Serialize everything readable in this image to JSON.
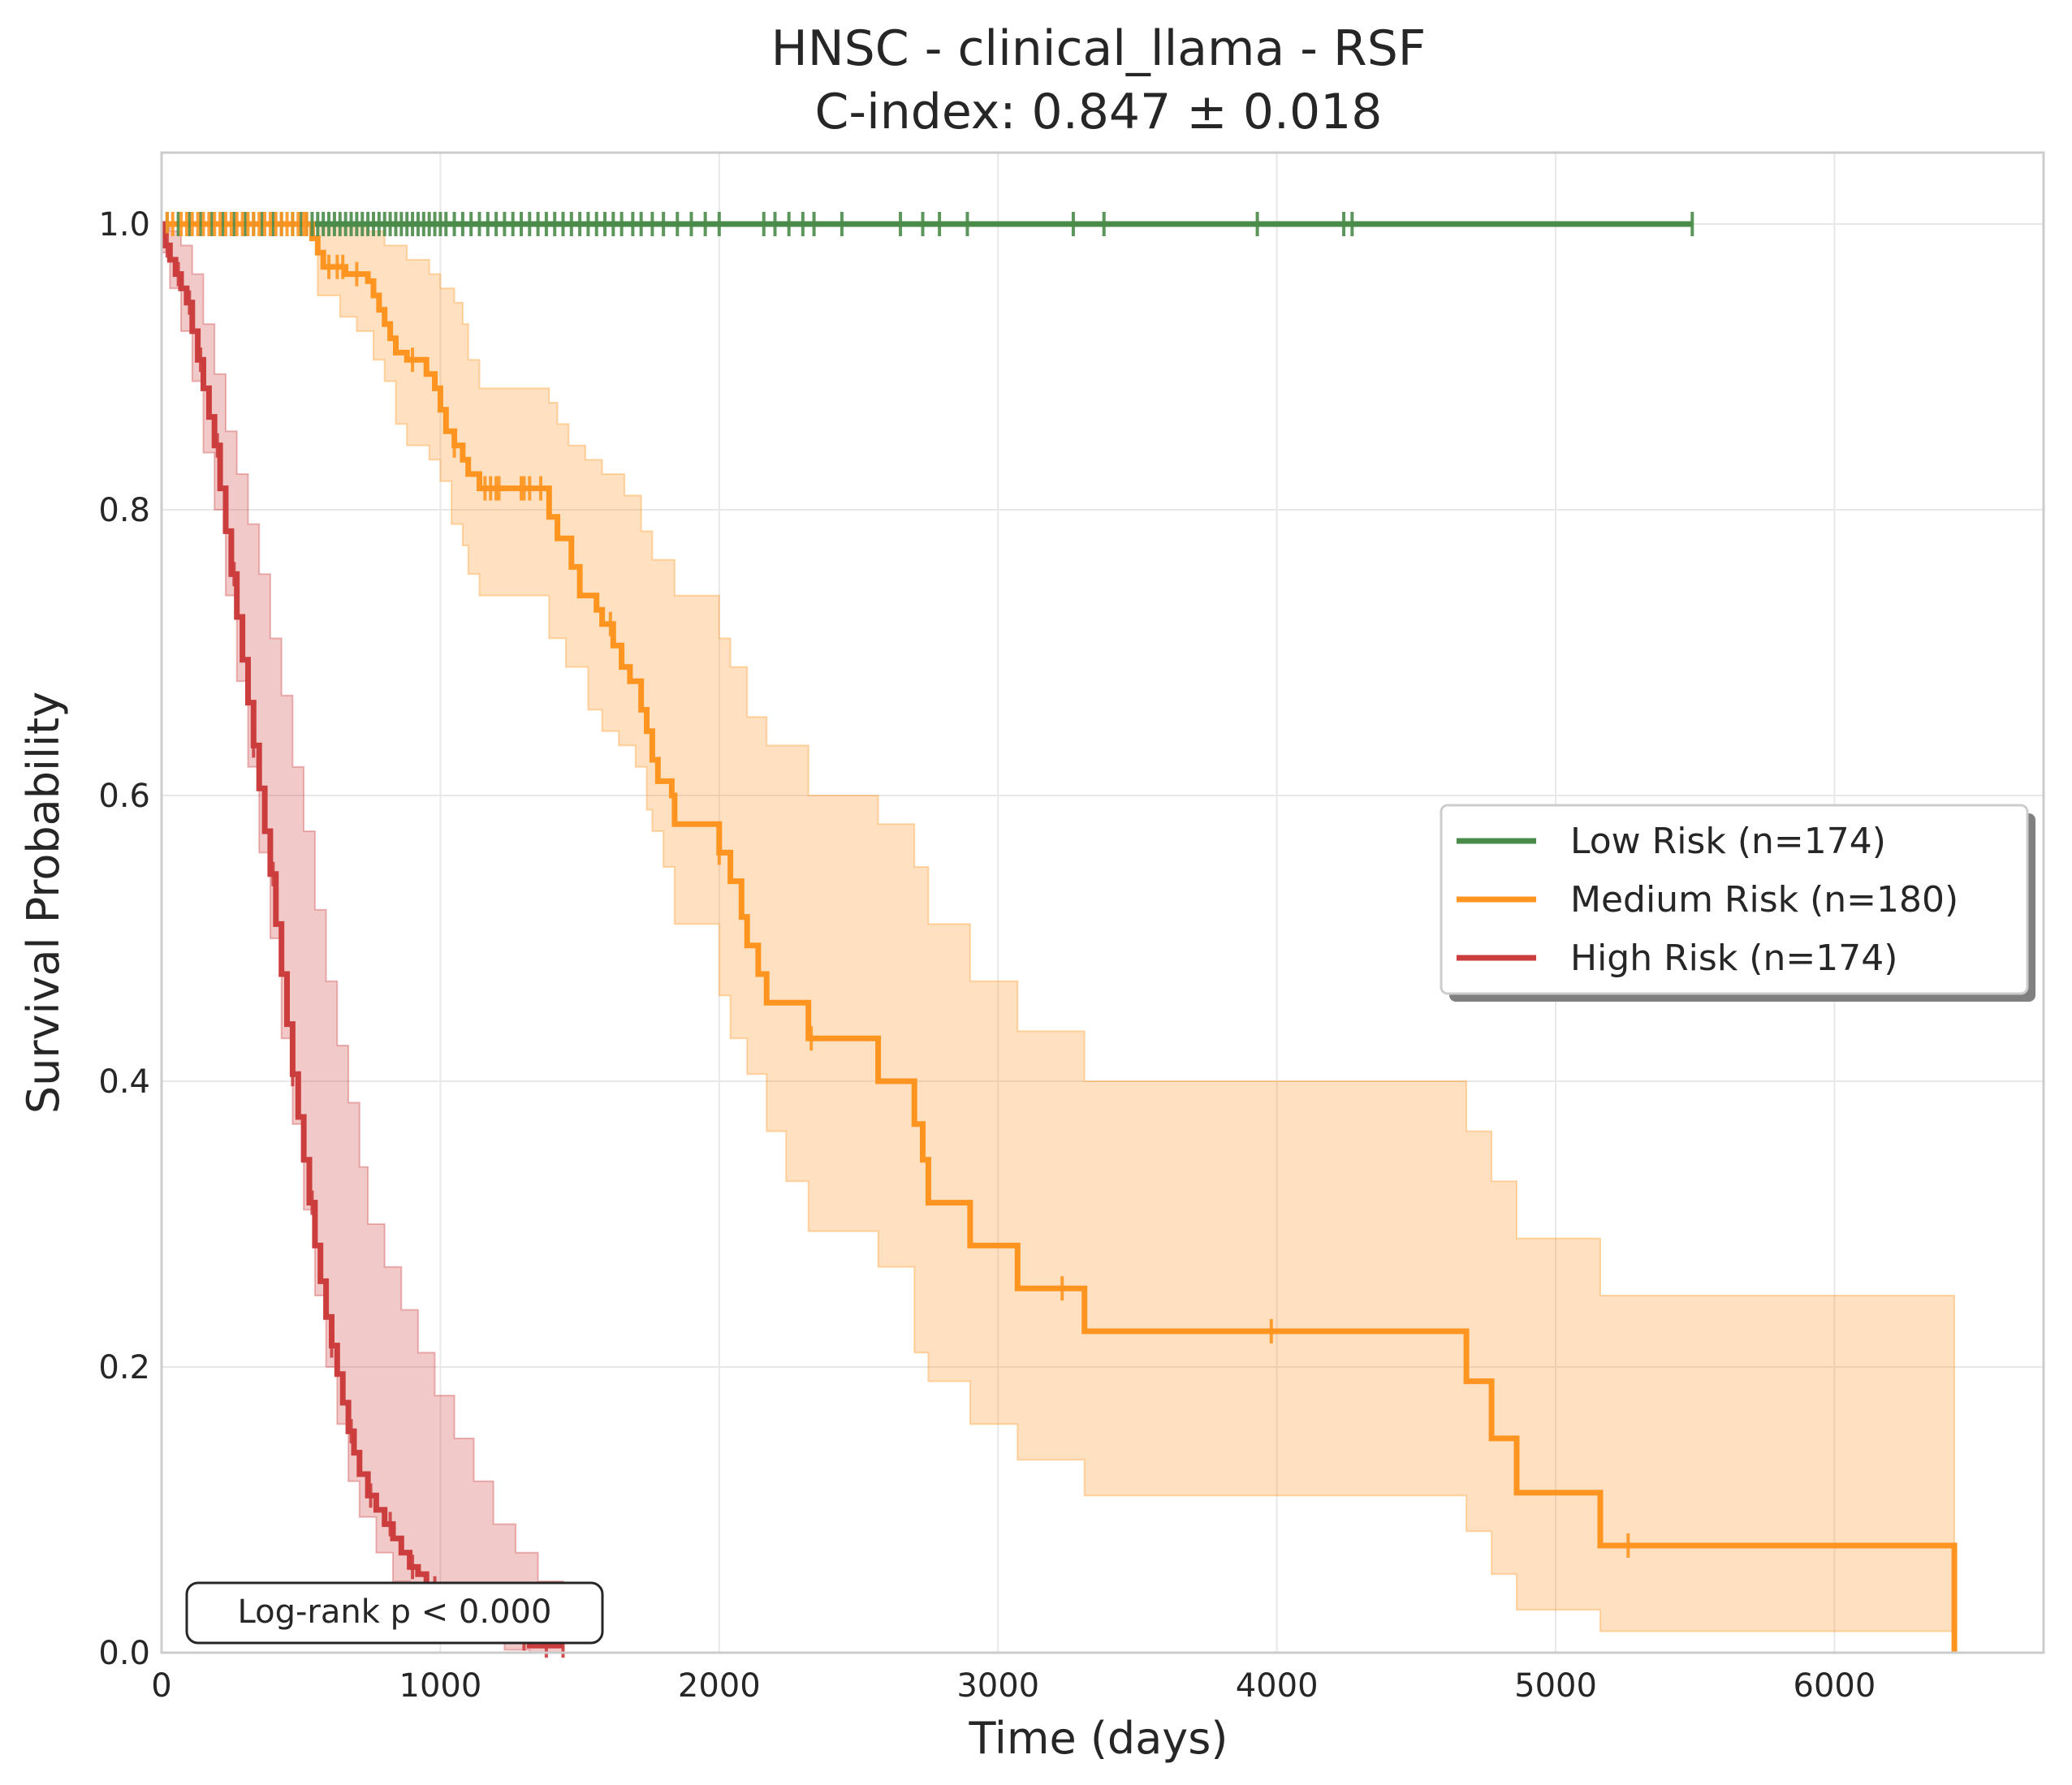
{
  "chart_data": {
    "type": "line",
    "subtype": "kaplan-meier",
    "title": "HNSC - clinical_llama - RSF",
    "subtitle": "C-index: 0.847 ± 0.018",
    "xlabel": "Time (days)",
    "ylabel": "Survival Probability",
    "xlim": [
      0,
      6750
    ],
    "ylim": [
      0,
      1.05
    ],
    "xticks": [
      0,
      1000,
      2000,
      3000,
      4000,
      5000,
      6000
    ],
    "xtick_labels": [
      "0",
      "1000",
      "2000",
      "3000",
      "4000",
      "5000",
      "6000"
    ],
    "yticks": [
      0.0,
      0.2,
      0.4,
      0.6,
      0.8,
      1.0
    ],
    "ytick_labels": [
      "0.0",
      "0.2",
      "0.4",
      "0.6",
      "0.8",
      "1.0"
    ],
    "grid": true,
    "legend_position": "center-right",
    "annotation": "Log-rank p < 0.000",
    "series": [
      {
        "name": "Low Risk (n=174)",
        "color": "#4a8b4a",
        "steps": [
          [
            0,
            1.0
          ],
          [
            5490,
            1.0
          ]
        ],
        "censor_times": [
          20,
          60,
          100,
          140,
          180,
          220,
          260,
          300,
          330,
          360,
          400,
          430,
          470,
          500,
          520,
          540,
          560,
          580,
          600,
          620,
          640,
          660,
          680,
          700,
          720,
          740,
          760,
          780,
          800,
          820,
          840,
          860,
          880,
          900,
          920,
          940,
          960,
          980,
          1000,
          1020,
          1050,
          1080,
          1110,
          1140,
          1170,
          1200,
          1230,
          1260,
          1290,
          1320,
          1350,
          1380,
          1410,
          1440,
          1470,
          1500,
          1530,
          1560,
          1590,
          1620,
          1650,
          1690,
          1720,
          1760,
          1800,
          1850,
          1900,
          1950,
          2000,
          2160,
          2200,
          2250,
          2300,
          2340,
          2440,
          2650,
          2730,
          2790,
          2890,
          3270,
          3380,
          3930,
          4240,
          4270,
          5490
        ],
        "ci_lower": [],
        "ci_upper": []
      },
      {
        "name": "Medium Risk (n=180)",
        "color": "#ff9520",
        "steps": [
          [
            0,
            1.0
          ],
          [
            530,
            1.0
          ],
          [
            540,
            0.99
          ],
          [
            560,
            0.98
          ],
          [
            580,
            0.97
          ],
          [
            660,
            0.965
          ],
          [
            740,
            0.96
          ],
          [
            760,
            0.95
          ],
          [
            780,
            0.94
          ],
          [
            800,
            0.93
          ],
          [
            820,
            0.92
          ],
          [
            840,
            0.91
          ],
          [
            880,
            0.905
          ],
          [
            950,
            0.895
          ],
          [
            980,
            0.885
          ],
          [
            1000,
            0.87
          ],
          [
            1020,
            0.855
          ],
          [
            1050,
            0.845
          ],
          [
            1080,
            0.835
          ],
          [
            1100,
            0.825
          ],
          [
            1140,
            0.815
          ],
          [
            1390,
            0.795
          ],
          [
            1420,
            0.78
          ],
          [
            1470,
            0.76
          ],
          [
            1500,
            0.74
          ],
          [
            1560,
            0.73
          ],
          [
            1580,
            0.72
          ],
          [
            1620,
            0.705
          ],
          [
            1650,
            0.69
          ],
          [
            1680,
            0.68
          ],
          [
            1720,
            0.66
          ],
          [
            1740,
            0.645
          ],
          [
            1760,
            0.625
          ],
          [
            1780,
            0.61
          ],
          [
            1830,
            0.6
          ],
          [
            1840,
            0.58
          ],
          [
            2000,
            0.56
          ],
          [
            2040,
            0.54
          ],
          [
            2080,
            0.515
          ],
          [
            2100,
            0.495
          ],
          [
            2140,
            0.475
          ],
          [
            2170,
            0.455
          ],
          [
            2320,
            0.43
          ],
          [
            2570,
            0.4
          ],
          [
            2700,
            0.37
          ],
          [
            2730,
            0.345
          ],
          [
            2750,
            0.315
          ],
          [
            2900,
            0.285
          ],
          [
            3070,
            0.255
          ],
          [
            3310,
            0.225
          ],
          [
            4680,
            0.19
          ],
          [
            4770,
            0.15
          ],
          [
            4860,
            0.112
          ],
          [
            5160,
            0.075
          ],
          [
            6430,
            0.075
          ],
          [
            6430,
            0.0
          ]
        ],
        "censor_times": [
          20,
          40,
          70,
          90,
          110,
          130,
          150,
          170,
          190,
          210,
          230,
          250,
          270,
          290,
          310,
          330,
          350,
          370,
          390,
          410,
          430,
          450,
          470,
          490,
          510,
          520,
          600,
          630,
          650,
          700,
          900,
          1050,
          1160,
          1180,
          1200,
          1210,
          1290,
          1300,
          1320,
          1360,
          1610,
          2000,
          2330,
          3230,
          3980,
          5260
        ],
        "ci_lower": [
          [
            0,
            1.0
          ],
          [
            530,
            1.0
          ],
          [
            560,
            0.95
          ],
          [
            640,
            0.935
          ],
          [
            700,
            0.925
          ],
          [
            760,
            0.905
          ],
          [
            800,
            0.89
          ],
          [
            840,
            0.86
          ],
          [
            880,
            0.845
          ],
          [
            960,
            0.835
          ],
          [
            1000,
            0.82
          ],
          [
            1040,
            0.79
          ],
          [
            1080,
            0.775
          ],
          [
            1100,
            0.755
          ],
          [
            1140,
            0.74
          ],
          [
            1390,
            0.71
          ],
          [
            1450,
            0.69
          ],
          [
            1530,
            0.66
          ],
          [
            1580,
            0.645
          ],
          [
            1640,
            0.635
          ],
          [
            1700,
            0.62
          ],
          [
            1740,
            0.59
          ],
          [
            1760,
            0.575
          ],
          [
            1800,
            0.55
          ],
          [
            1840,
            0.51
          ],
          [
            2000,
            0.46
          ],
          [
            2040,
            0.43
          ],
          [
            2100,
            0.405
          ],
          [
            2170,
            0.365
          ],
          [
            2240,
            0.33
          ],
          [
            2320,
            0.295
          ],
          [
            2570,
            0.27
          ],
          [
            2700,
            0.21
          ],
          [
            2750,
            0.19
          ],
          [
            2900,
            0.16
          ],
          [
            3070,
            0.135
          ],
          [
            3310,
            0.11
          ],
          [
            4680,
            0.085
          ],
          [
            4770,
            0.055
          ],
          [
            4860,
            0.03
          ],
          [
            5160,
            0.015
          ],
          [
            6430,
            0.015
          ]
        ],
        "ci_upper": [
          [
            0,
            1.0
          ],
          [
            540,
            1.0
          ],
          [
            560,
            1.0
          ],
          [
            740,
            0.995
          ],
          [
            800,
            0.985
          ],
          [
            880,
            0.975
          ],
          [
            960,
            0.965
          ],
          [
            1000,
            0.955
          ],
          [
            1050,
            0.945
          ],
          [
            1080,
            0.93
          ],
          [
            1100,
            0.905
          ],
          [
            1140,
            0.885
          ],
          [
            1390,
            0.875
          ],
          [
            1420,
            0.86
          ],
          [
            1460,
            0.845
          ],
          [
            1520,
            0.835
          ],
          [
            1580,
            0.825
          ],
          [
            1660,
            0.81
          ],
          [
            1720,
            0.785
          ],
          [
            1760,
            0.765
          ],
          [
            1840,
            0.74
          ],
          [
            2000,
            0.71
          ],
          [
            2040,
            0.69
          ],
          [
            2100,
            0.655
          ],
          [
            2170,
            0.635
          ],
          [
            2320,
            0.6
          ],
          [
            2570,
            0.58
          ],
          [
            2700,
            0.55
          ],
          [
            2750,
            0.51
          ],
          [
            2900,
            0.47
          ],
          [
            3070,
            0.435
          ],
          [
            3310,
            0.4
          ],
          [
            4680,
            0.365
          ],
          [
            4770,
            0.33
          ],
          [
            4860,
            0.29
          ],
          [
            5160,
            0.25
          ],
          [
            6430,
            0.205
          ]
        ]
      },
      {
        "name": "High Risk (n=174)",
        "color": "#cc3d3d",
        "steps": [
          [
            0,
            1.0
          ],
          [
            10,
            0.985
          ],
          [
            30,
            0.975
          ],
          [
            50,
            0.965
          ],
          [
            70,
            0.955
          ],
          [
            90,
            0.945
          ],
          [
            110,
            0.925
          ],
          [
            130,
            0.905
          ],
          [
            150,
            0.885
          ],
          [
            170,
            0.865
          ],
          [
            190,
            0.845
          ],
          [
            210,
            0.815
          ],
          [
            230,
            0.785
          ],
          [
            250,
            0.755
          ],
          [
            270,
            0.725
          ],
          [
            290,
            0.695
          ],
          [
            310,
            0.665
          ],
          [
            330,
            0.635
          ],
          [
            350,
            0.605
          ],
          [
            370,
            0.575
          ],
          [
            390,
            0.545
          ],
          [
            410,
            0.51
          ],
          [
            430,
            0.475
          ],
          [
            450,
            0.44
          ],
          [
            470,
            0.405
          ],
          [
            490,
            0.375
          ],
          [
            510,
            0.345
          ],
          [
            530,
            0.315
          ],
          [
            550,
            0.285
          ],
          [
            570,
            0.26
          ],
          [
            590,
            0.235
          ],
          [
            610,
            0.215
          ],
          [
            630,
            0.195
          ],
          [
            650,
            0.175
          ],
          [
            670,
            0.155
          ],
          [
            690,
            0.14
          ],
          [
            710,
            0.125
          ],
          [
            740,
            0.11
          ],
          [
            770,
            0.1
          ],
          [
            800,
            0.09
          ],
          [
            830,
            0.08
          ],
          [
            860,
            0.07
          ],
          [
            890,
            0.06
          ],
          [
            920,
            0.055
          ],
          [
            950,
            0.045
          ],
          [
            1000,
            0.04
          ],
          [
            1050,
            0.035
          ],
          [
            1100,
            0.03
          ],
          [
            1140,
            0.025
          ],
          [
            1180,
            0.02
          ],
          [
            1230,
            0.015
          ],
          [
            1270,
            0.01
          ],
          [
            1320,
            0.005
          ],
          [
            1440,
            0.005
          ]
        ],
        "censor_times": [
          20,
          60,
          100,
          140,
          200,
          260,
          330,
          400,
          470,
          540,
          610,
          680,
          750,
          820,
          900,
          980,
          1060,
          1140,
          1220,
          1300,
          1380,
          1440
        ],
        "ci_lower": [
          [
            0,
            0.98
          ],
          [
            30,
            0.955
          ],
          [
            70,
            0.925
          ],
          [
            110,
            0.89
          ],
          [
            150,
            0.84
          ],
          [
            190,
            0.8
          ],
          [
            230,
            0.74
          ],
          [
            270,
            0.68
          ],
          [
            310,
            0.62
          ],
          [
            350,
            0.56
          ],
          [
            390,
            0.5
          ],
          [
            430,
            0.43
          ],
          [
            470,
            0.37
          ],
          [
            510,
            0.31
          ],
          [
            550,
            0.25
          ],
          [
            590,
            0.2
          ],
          [
            630,
            0.16
          ],
          [
            670,
            0.12
          ],
          [
            710,
            0.095
          ],
          [
            770,
            0.07
          ],
          [
            830,
            0.05
          ],
          [
            890,
            0.035
          ],
          [
            950,
            0.025
          ],
          [
            1050,
            0.015
          ],
          [
            1140,
            0.008
          ],
          [
            1230,
            0.002
          ],
          [
            1320,
            0.0
          ],
          [
            1440,
            0.0
          ]
        ],
        "ci_upper": [
          [
            0,
            1.0
          ],
          [
            30,
            0.995
          ],
          [
            70,
            0.985
          ],
          [
            110,
            0.965
          ],
          [
            150,
            0.93
          ],
          [
            190,
            0.895
          ],
          [
            230,
            0.855
          ],
          [
            270,
            0.825
          ],
          [
            310,
            0.79
          ],
          [
            350,
            0.755
          ],
          [
            390,
            0.71
          ],
          [
            430,
            0.67
          ],
          [
            470,
            0.62
          ],
          [
            510,
            0.575
          ],
          [
            550,
            0.52
          ],
          [
            590,
            0.47
          ],
          [
            630,
            0.425
          ],
          [
            670,
            0.385
          ],
          [
            710,
            0.34
          ],
          [
            740,
            0.3
          ],
          [
            800,
            0.27
          ],
          [
            860,
            0.24
          ],
          [
            920,
            0.21
          ],
          [
            980,
            0.18
          ],
          [
            1050,
            0.15
          ],
          [
            1120,
            0.12
          ],
          [
            1190,
            0.09
          ],
          [
            1270,
            0.07
          ],
          [
            1350,
            0.05
          ],
          [
            1440,
            0.04
          ]
        ]
      }
    ]
  }
}
